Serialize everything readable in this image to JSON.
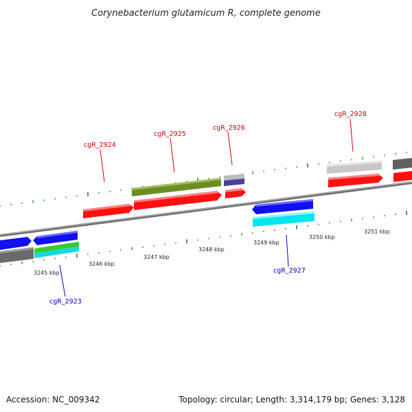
{
  "title": "Corynebacterium glutamicum R, complete genome",
  "footer": {
    "accession": "Accession: NC_009342",
    "summary": "Topology: circular; Length: 3,314,179 bp; Genes: 3,128"
  },
  "colors": {
    "forward_label": "#cc0000",
    "reverse_label": "#0000bb",
    "tick": "#1e8a1e",
    "backbone": "#7a7a7a"
  },
  "kbp_ticks": [
    "3245 kbp",
    "3246 kbp",
    "3247 kbp",
    "3248 kbp",
    "3249 kbp",
    "3250 kbp",
    "3251 kbp"
  ],
  "gene_labels": {
    "forward": [
      "cgR_2924",
      "cgR_2925",
      "cgR_2926",
      "cgR_2928"
    ],
    "reverse": [
      "cgR_2923",
      "cgR_2927"
    ]
  }
}
